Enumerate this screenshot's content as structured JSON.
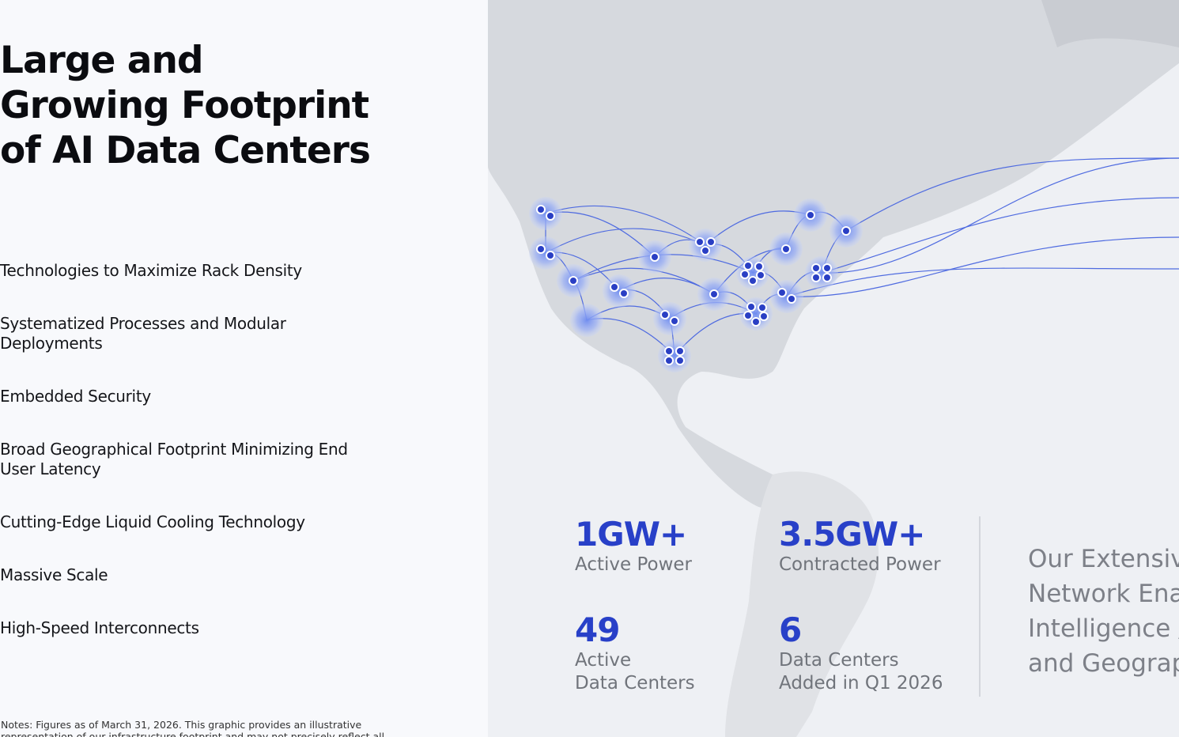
{
  "header": {
    "title": "Large and Growing Footprint of AI Data Centers"
  },
  "features": [
    "Technologies to Maximize Rack Density",
    "Systematized Processes and Modular Deployments",
    "Embedded Security",
    "Broad Geographical Footprint Minimizing End User Latency",
    "Cutting-Edge Liquid Cooling Technology",
    "Massive Scale",
    "High-Speed Interconnects"
  ],
  "stats": [
    {
      "value": "1GW+",
      "label": [
        "Active Power"
      ]
    },
    {
      "value": "3.5GW+",
      "label": [
        "Contracted Power"
      ]
    },
    {
      "value": "49",
      "label": [
        "Active",
        "Data Centers"
      ]
    },
    {
      "value": "6",
      "label": [
        "Data Centers",
        "Added in Q1 2026"
      ]
    }
  ],
  "side_text": [
    "Our Extensiv",
    "Network Ena",
    "Intelligence /",
    "and Geograp"
  ],
  "notes": [
    "Notes: Figures as of March 31, 2026. This graphic provides an illustrative",
    "representation of our infrastructure footprint and may not precisely reflect all"
  ]
}
